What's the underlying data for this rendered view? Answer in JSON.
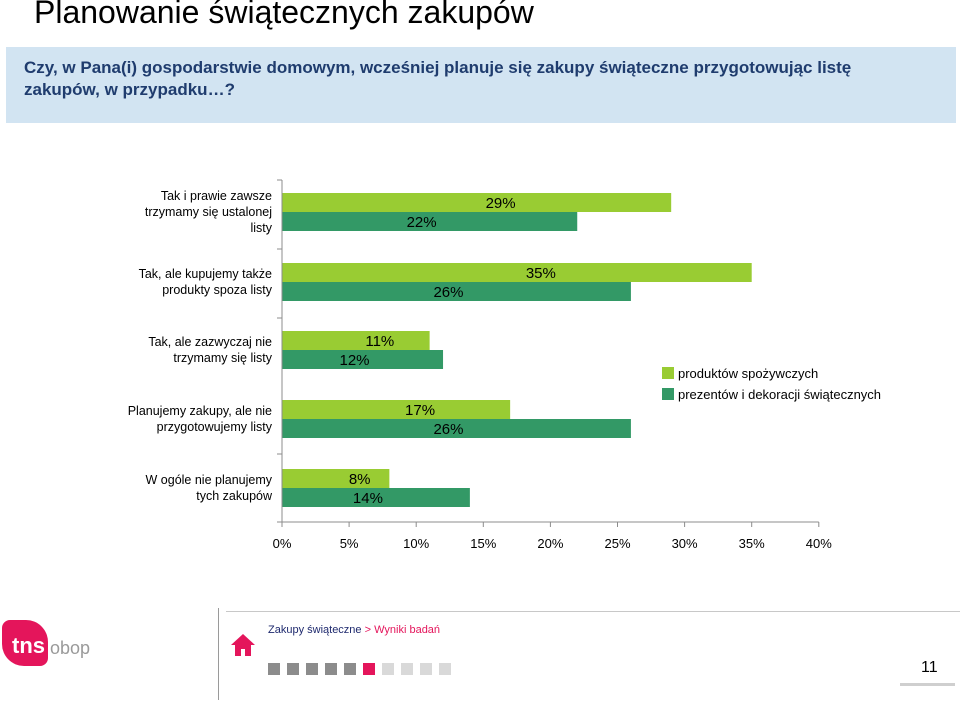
{
  "title": "Planowanie świątecznych zakupów",
  "question": "Czy, w Pana(i) gospodarstwie domowym, wcześniej planuje się zakupy świąteczne przygotowując listę zakupów, w przypadku…?",
  "chart_data": {
    "type": "bar",
    "orientation": "horizontal",
    "categories": [
      [
        "Tak i prawie zawsze",
        "trzymamy się ustalonej",
        "listy"
      ],
      [
        "Tak, ale kupujemy także",
        "produkty spoza listy"
      ],
      [
        "Tak, ale zazwyczaj nie",
        "trzymamy się listy"
      ],
      [
        "Planujemy zakupy, ale nie",
        "przygotowujemy listy"
      ],
      [
        "W ogóle nie planujemy",
        "tych zakupów"
      ]
    ],
    "series": [
      {
        "name": "produktów spożywczych",
        "color": "#99cc33",
        "values": [
          29,
          35,
          11,
          17,
          8
        ]
      },
      {
        "name": "prezentów i dekoracji świątecznych",
        "color": "#339966",
        "values": [
          22,
          26,
          12,
          26,
          14
        ]
      }
    ],
    "value_labels": {
      "produktów spożywczych": [
        "29%",
        "35%",
        "11%",
        "17%",
        "8%"
      ],
      "prezentów i dekoracji świątecznych": [
        "22%",
        "26%",
        "12%",
        "26%",
        "14%"
      ]
    },
    "xlim": [
      0,
      40
    ],
    "xticks": [
      "0%",
      "5%",
      "10%",
      "15%",
      "20%",
      "25%",
      "30%",
      "35%",
      "40%"
    ],
    "legend_position": "right",
    "grid": false
  },
  "footer": {
    "logo_main": "tns",
    "logo_sub": "obop",
    "breadcrumb_root": "Zakupy świąteczne",
    "breadcrumb_sep": ">",
    "breadcrumb_current": "Wyniki badań",
    "page_number": "11",
    "nav_colors": [
      "#8c8c8c",
      "#8c8c8c",
      "#8c8c8c",
      "#8c8c8c",
      "#8c8c8c",
      "#e4155b",
      "#d9d9d9",
      "#d9d9d9",
      "#d9d9d9",
      "#d9d9d9"
    ],
    "icons": [
      "home-icon"
    ]
  }
}
